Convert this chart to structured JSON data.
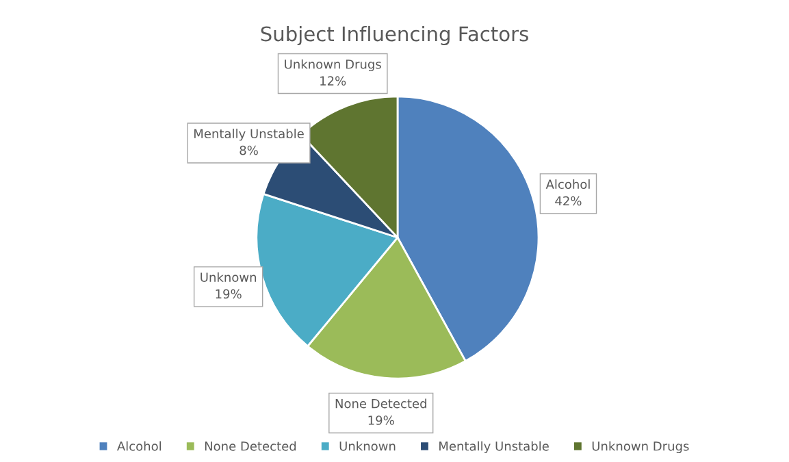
{
  "chart_data": {
    "type": "pie",
    "title": "Subject Influencing Factors",
    "categories": [
      "Alcohol",
      "None Detected",
      "Unknown",
      "Mentally Unstable",
      "Unknown Drugs"
    ],
    "values": [
      42,
      19,
      19,
      8,
      12
    ],
    "colors": [
      "#4f81bd",
      "#9bbb59",
      "#4bacc6",
      "#2c4d75",
      "#5f7530"
    ],
    "value_labels": [
      "42%",
      "19%",
      "19%",
      "8%",
      "12%"
    ],
    "legend": "bottom"
  }
}
